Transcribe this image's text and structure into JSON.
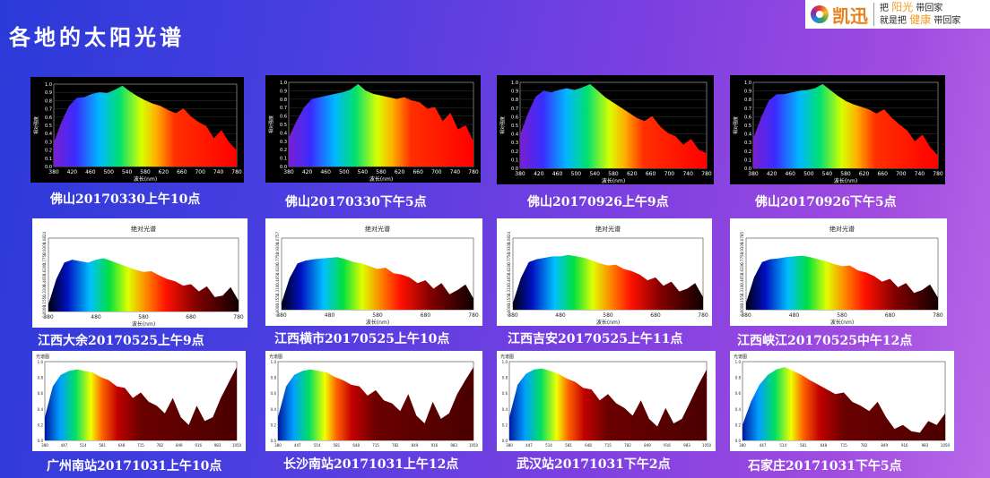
{
  "header": {
    "title": "各地的太阳光谱",
    "brand": "凯迅",
    "slogan_line1": [
      "把",
      "阳光",
      "带回家"
    ],
    "slogan_line2": [
      "就是把",
      "健康",
      "带回家"
    ]
  },
  "panels": [
    {
      "caption": "佛山20170330上午10点",
      "style": "dark",
      "ticks": [
        "380",
        "420",
        "460",
        "500",
        "540",
        "580",
        "620",
        "660",
        "700",
        "740",
        "780"
      ],
      "yticks": [
        "0.0",
        "0.1",
        "0.2",
        "0.3",
        "0.4",
        "0.5",
        "0.6",
        "0.7",
        "0.8",
        "0.9",
        "1.0"
      ],
      "xlabel": "波长(nm)",
      "ylabel": "相对强度",
      "profile": [
        0.3,
        0.55,
        0.75,
        0.85,
        0.86,
        0.9,
        0.92,
        0.91,
        0.95,
        1.0,
        0.93,
        0.87,
        0.82,
        0.78,
        0.75,
        0.7,
        0.66,
        0.72,
        0.62,
        0.55,
        0.5,
        0.35,
        0.45,
        0.3,
        0.2
      ]
    },
    {
      "caption": "佛山20170330下午5点",
      "style": "dark",
      "ticks": [
        "380",
        "420",
        "460",
        "500",
        "540",
        "580",
        "620",
        "660",
        "700",
        "740",
        "780"
      ],
      "yticks": [
        "0.0",
        "0.1",
        "0.2",
        "0.3",
        "0.4",
        "0.5",
        "0.6",
        "0.7",
        "0.8",
        "0.9",
        "1.0"
      ],
      "xlabel": "波长(nm)",
      "ylabel": "相对强度",
      "profile": [
        0.35,
        0.55,
        0.72,
        0.82,
        0.84,
        0.86,
        0.88,
        0.9,
        0.93,
        1.0,
        0.92,
        0.88,
        0.86,
        0.84,
        0.82,
        0.84,
        0.8,
        0.78,
        0.7,
        0.72,
        0.55,
        0.65,
        0.45,
        0.5,
        0.3
      ]
    },
    {
      "caption": "佛山20170926上午9点",
      "style": "dark",
      "ticks": [
        "380",
        "420",
        "460",
        "500",
        "540",
        "580",
        "620",
        "660",
        "700",
        "740",
        "780"
      ],
      "yticks": [
        "0.0",
        "0.1",
        "0.2",
        "0.3",
        "0.4",
        "0.5",
        "0.6",
        "0.7",
        "0.8",
        "0.9",
        "1.0"
      ],
      "xlabel": "波长(nm)",
      "ylabel": "相对强度",
      "profile": [
        0.4,
        0.65,
        0.85,
        0.92,
        0.9,
        0.93,
        0.95,
        0.93,
        0.96,
        1.0,
        0.92,
        0.84,
        0.78,
        0.72,
        0.66,
        0.6,
        0.56,
        0.62,
        0.5,
        0.42,
        0.38,
        0.28,
        0.35,
        0.22,
        0.18
      ]
    },
    {
      "caption": "佛山20170926下午5点",
      "style": "dark",
      "ticks": [
        "380",
        "420",
        "460",
        "500",
        "540",
        "580",
        "620",
        "660",
        "700",
        "740",
        "780"
      ],
      "yticks": [
        "0.0",
        "0.1",
        "0.2",
        "0.3",
        "0.4",
        "0.5",
        "0.6",
        "0.7",
        "0.8",
        "0.9",
        "1.0"
      ],
      "xlabel": "波长(nm)",
      "ylabel": "相对强度",
      "profile": [
        0.35,
        0.6,
        0.8,
        0.88,
        0.88,
        0.9,
        0.92,
        0.93,
        0.95,
        1.0,
        0.93,
        0.86,
        0.8,
        0.76,
        0.73,
        0.7,
        0.65,
        0.7,
        0.6,
        0.52,
        0.45,
        0.32,
        0.4,
        0.25,
        0.15
      ]
    },
    {
      "caption": "江西大余20170525上午9点",
      "style": "abs",
      "chart_title": "绝对光谱",
      "ticks": [
        "380",
        "480",
        "580",
        "680",
        "780"
      ],
      "xlabel": "波长(nm)",
      "yticks": [
        "0.0000",
        "0.1550",
        "0.3100",
        "0.4650",
        "0.6200",
        "0.7750",
        "0.9300",
        "1.0824"
      ],
      "profile": [
        0.1,
        0.45,
        0.68,
        0.72,
        0.7,
        0.68,
        0.72,
        0.74,
        0.7,
        0.66,
        0.62,
        0.58,
        0.55,
        0.56,
        0.5,
        0.45,
        0.42,
        0.36,
        0.38,
        0.28,
        0.35,
        0.2,
        0.22,
        0.34,
        0.15
      ]
    },
    {
      "caption": "江西横市20170525上午10点",
      "style": "abs",
      "chart_title": "绝对光谱",
      "ticks": [
        "380",
        "480",
        "580",
        "680",
        "780"
      ],
      "xlabel": "波长(nm)",
      "yticks": [
        "0.0000",
        "0.1550",
        "0.3100",
        "0.4650",
        "0.6200",
        "0.7750",
        "0.9300",
        "1.0757"
      ],
      "profile": [
        0.1,
        0.45,
        0.66,
        0.7,
        0.72,
        0.73,
        0.74,
        0.75,
        0.72,
        0.68,
        0.66,
        0.62,
        0.58,
        0.6,
        0.52,
        0.5,
        0.46,
        0.38,
        0.42,
        0.3,
        0.38,
        0.22,
        0.28,
        0.36,
        0.16
      ]
    },
    {
      "caption": "江西吉安20170525上午11点",
      "style": "abs",
      "chart_title": "绝对光谱",
      "ticks": [
        "380",
        "480",
        "580",
        "680",
        "780"
      ],
      "xlabel": "波长(nm)",
      "yticks": [
        "0.0000",
        "0.1550",
        "0.3100",
        "0.4650",
        "0.6200",
        "0.7750",
        "0.9300",
        "1.0824"
      ],
      "profile": [
        0.1,
        0.45,
        0.68,
        0.72,
        0.74,
        0.76,
        0.76,
        0.78,
        0.76,
        0.74,
        0.7,
        0.66,
        0.63,
        0.64,
        0.58,
        0.55,
        0.5,
        0.42,
        0.46,
        0.34,
        0.4,
        0.26,
        0.3,
        0.38,
        0.18
      ]
    },
    {
      "caption": "江西峡江20170525中午12点",
      "style": "abs",
      "chart_title": "绝对光谱",
      "ticks": [
        "380",
        "480",
        "580",
        "680",
        "780"
      ],
      "xlabel": "波长(nm)",
      "yticks": [
        "0.0000",
        "0.1550",
        "0.3100",
        "0.4650",
        "0.6200",
        "0.7750",
        "0.9300",
        "1.0785"
      ],
      "profile": [
        0.1,
        0.46,
        0.68,
        0.72,
        0.73,
        0.75,
        0.76,
        0.77,
        0.75,
        0.72,
        0.69,
        0.65,
        0.62,
        0.63,
        0.56,
        0.53,
        0.48,
        0.4,
        0.44,
        0.32,
        0.38,
        0.24,
        0.28,
        0.36,
        0.17
      ]
    },
    {
      "caption": "广州南站20171031上午10点",
      "style": "wide",
      "chart_title": "光谱图",
      "ticks": [
        "380",
        "447",
        "514",
        "581",
        "648",
        "715",
        "782",
        "849",
        "916",
        "983",
        "1050"
      ],
      "yticks": [
        "0.0",
        "0.2",
        "0.4",
        "0.6",
        "0.8",
        "1.0"
      ],
      "profile": [
        0.3,
        0.7,
        0.85,
        0.9,
        0.92,
        0.9,
        0.88,
        0.82,
        0.78,
        0.7,
        0.68,
        0.55,
        0.62,
        0.5,
        0.45,
        0.35,
        0.55,
        0.3,
        0.2,
        0.45,
        0.25,
        0.3,
        0.55,
        0.75,
        0.95
      ]
    },
    {
      "caption": "长沙南站20171031上午12点",
      "style": "wide",
      "chart_title": "光谱图",
      "ticks": [
        "380",
        "447",
        "514",
        "581",
        "648",
        "715",
        "782",
        "849",
        "916",
        "983",
        "1050"
      ],
      "yticks": [
        "0.0",
        "0.2",
        "0.4",
        "0.6",
        "0.8",
        "1.0"
      ],
      "profile": [
        0.3,
        0.7,
        0.85,
        0.9,
        0.92,
        0.9,
        0.88,
        0.82,
        0.78,
        0.72,
        0.7,
        0.58,
        0.65,
        0.52,
        0.48,
        0.38,
        0.6,
        0.32,
        0.22,
        0.5,
        0.28,
        0.35,
        0.6,
        0.78,
        0.95
      ]
    },
    {
      "caption": "武汉站20171031下午2点",
      "style": "wide",
      "chart_title": "光谱图",
      "ticks": [
        "380",
        "447",
        "514",
        "581",
        "648",
        "715",
        "782",
        "849",
        "916",
        "983",
        "1050"
      ],
      "yticks": [
        "0.0",
        "0.2",
        "0.4",
        "0.6",
        "0.8",
        "1.0"
      ],
      "profile": [
        0.3,
        0.72,
        0.86,
        0.92,
        0.93,
        0.9,
        0.86,
        0.8,
        0.76,
        0.68,
        0.66,
        0.52,
        0.6,
        0.48,
        0.42,
        0.32,
        0.52,
        0.28,
        0.18,
        0.42,
        0.22,
        0.28,
        0.5,
        0.72,
        0.92
      ]
    },
    {
      "caption": "石家庄20171031下午5点",
      "style": "wide",
      "chart_title": "光谱图",
      "ticks": [
        "380",
        "447",
        "514",
        "581",
        "648",
        "715",
        "782",
        "849",
        "916",
        "983",
        "1050"
      ],
      "yticks": [
        "0.0",
        "0.2",
        "0.4",
        "0.6",
        "0.8",
        "1.0"
      ],
      "profile": [
        0.2,
        0.5,
        0.72,
        0.85,
        0.92,
        0.95,
        0.9,
        0.85,
        0.78,
        0.72,
        0.66,
        0.6,
        0.62,
        0.5,
        0.45,
        0.38,
        0.5,
        0.3,
        0.15,
        0.2,
        0.12,
        0.1,
        0.25,
        0.2,
        0.35
      ]
    }
  ]
}
